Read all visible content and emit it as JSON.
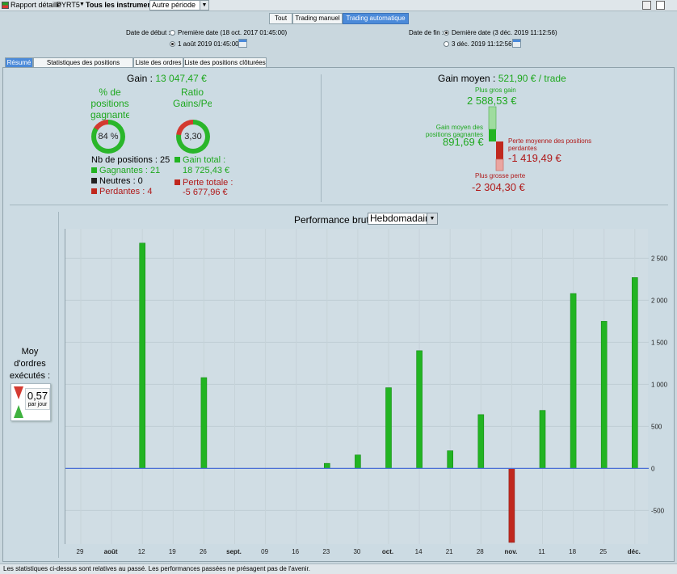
{
  "toolbar": {
    "report_label": "Rapport détaillé",
    "instrument_code": "PYRT5",
    "instruments_label": "Tous les instruments",
    "period_value": "Autre période"
  },
  "mode_tabs": [
    {
      "label": "Tout"
    },
    {
      "label": "Trading manuel"
    },
    {
      "label": "Trading automatique",
      "active": true
    }
  ],
  "dates": {
    "start_label": "Date de début :",
    "start_option_first": "Première date (18 oct. 2017 01:45:00)",
    "start_option_custom": "1 août 2019 01:45:00",
    "end_label": "Date de fin :",
    "end_option_last": "Dernière date (3 déc. 2019 11:12:56)",
    "end_option_custom": "3 déc. 2019 11:12:56"
  },
  "view_tabs": [
    {
      "label": "Résumé",
      "active": true
    },
    {
      "label": "Statistiques des positions clôturées"
    },
    {
      "label": "Liste des ordres"
    },
    {
      "label": "Liste des positions clôturées"
    }
  ],
  "summary": {
    "gain_label": "Gain :",
    "gain_value": "13 047,47 €",
    "pct_win_title": [
      "% de",
      "positions",
      "gagnante"
    ],
    "pct_win_value": "84 %",
    "pct_win_ratio": 0.84,
    "ratio_title": [
      "Ratio",
      "Gains/Pe"
    ],
    "ratio_value": "3,30",
    "ratio_fraction": 0.77,
    "nb_positions_label": "Nb de positions :",
    "nb_positions": "25",
    "winners": "Gagnantes : 21",
    "neutral": "Neutres : 0",
    "losers": "Perdantes : 4",
    "total_gain_label": "Gain total :",
    "total_gain_value": "18 725,43 €",
    "total_loss_label": "Perte totale :",
    "total_loss_value": "-5 677,96 €"
  },
  "avg": {
    "gain_moyen_label": "Gain moyen :",
    "gain_moyen_value": "521,90 € / trade",
    "biggest_gain_label": "Plus gros gain",
    "biggest_gain_value": "2 588,53 €",
    "avg_win_label": "Gain moyen des positions gagnantes",
    "avg_win_value": "891,69 €",
    "avg_loss_label": "Perte moyenne des positions perdantes",
    "avg_loss_value": "-1 419,49 €",
    "biggest_loss_label": "Plus grosse perte",
    "biggest_loss_value": "-2 304,30 €"
  },
  "orders": {
    "label": "Moy d'ordres exécutés :",
    "value": "0,57",
    "unit": "par jour"
  },
  "chart_title": "Performance brute",
  "chart_period": "Hebdomadaire",
  "chart_data": {
    "type": "bar",
    "title": "Performance brute",
    "categories": [
      "29",
      "août",
      "12",
      "19",
      "26",
      "sept.",
      "09",
      "16",
      "23",
      "30",
      "oct.",
      "14",
      "21",
      "28",
      "nov.",
      "11",
      "18",
      "25",
      "déc."
    ],
    "bars": [
      {
        "x": 2,
        "value": 2680
      },
      {
        "x": 4,
        "value": 1080
      },
      {
        "x": 8,
        "value": 60
      },
      {
        "x": 9,
        "value": 160
      },
      {
        "x": 10,
        "value": 960
      },
      {
        "x": 11,
        "value": 1400
      },
      {
        "x": 12,
        "value": 210
      },
      {
        "x": 13,
        "value": 640
      },
      {
        "x": 14,
        "value": -880
      },
      {
        "x": 15,
        "value": 690
      },
      {
        "x": 16,
        "value": 2080
      },
      {
        "x": 17,
        "value": 1750
      },
      {
        "x": 18,
        "value": 2270
      }
    ],
    "yticks": [
      -500,
      0,
      500,
      1000,
      1500,
      2000,
      2500
    ],
    "ytick_labels": [
      "-500",
      "0",
      "500",
      "1 000",
      "1 500",
      "2 000",
      "2 500"
    ],
    "ylim": [
      -900,
      2850
    ],
    "colors": {
      "positive": "#22b422",
      "negative": "#c0281e",
      "zero_line": "#4b6fd6"
    }
  },
  "footer": "Les statistiques ci-dessus sont relatives au passé. Les performances passées ne présagent pas de l'avenir."
}
